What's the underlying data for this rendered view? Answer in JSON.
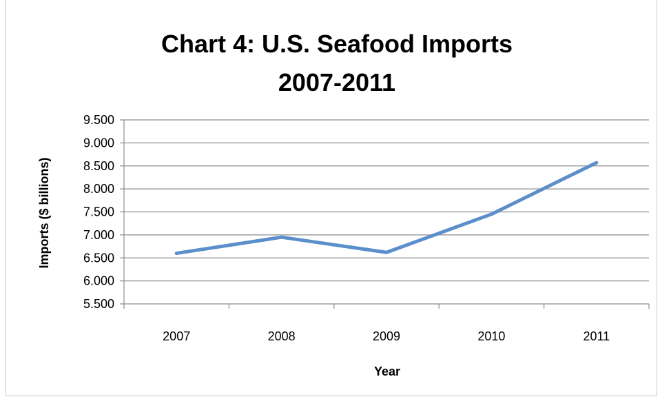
{
  "chart_data": {
    "type": "line",
    "title": "Chart 4:  U.S. Seafood Imports",
    "subtitle": "2007-2011",
    "xlabel": "Year",
    "ylabel": "Imports ($ billions)",
    "categories": [
      "2007",
      "2008",
      "2009",
      "2010",
      "2011"
    ],
    "series": [
      {
        "values": [
          6.6,
          6.95,
          6.62,
          7.45,
          8.57
        ],
        "color": "#5B8FCB"
      }
    ],
    "ylim": [
      5.5,
      9.5
    ],
    "yticks": [
      5.5,
      6.0,
      6.5,
      7.0,
      7.5,
      8.0,
      8.5,
      9.0,
      9.5
    ],
    "ytick_labels": [
      "5.500",
      "6.000",
      "6.500",
      "7.000",
      "7.500",
      "8.000",
      "8.500",
      "9.000",
      "9.500"
    ],
    "grid": true,
    "legend": "none"
  }
}
